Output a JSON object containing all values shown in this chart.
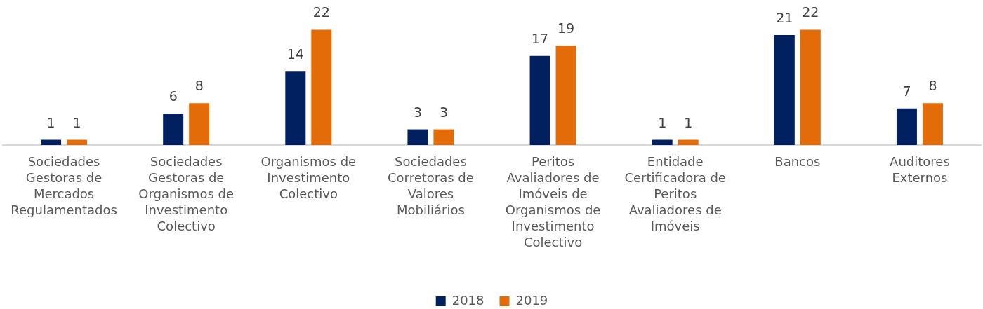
{
  "chart_data": {
    "type": "bar",
    "categories": [
      "Sociedades Gestoras de Mercados Regulamentados",
      "Sociedades Gestoras de Organismos de Investimento Colectivo",
      "Organismos de Investimento Colectivo",
      "Sociedades Corretoras de Valores Mobiliários",
      "Peritos Avaliadores de Imóveis de Organismos de Investimento Colectivo",
      "Entidade Certificadora de Peritos Avaliadores de Imóveis",
      "Bancos",
      "Auditores Externos"
    ],
    "series": [
      {
        "name": "2018",
        "color": "#002060",
        "values": [
          1,
          6,
          14,
          3,
          17,
          1,
          21,
          7
        ]
      },
      {
        "name": "2019",
        "color": "#e36c09",
        "values": [
          1,
          8,
          22,
          3,
          19,
          1,
          22,
          8
        ]
      }
    ],
    "data_labels": true,
    "legend": "bottom",
    "grid": false,
    "tick_labels": "x"
  }
}
